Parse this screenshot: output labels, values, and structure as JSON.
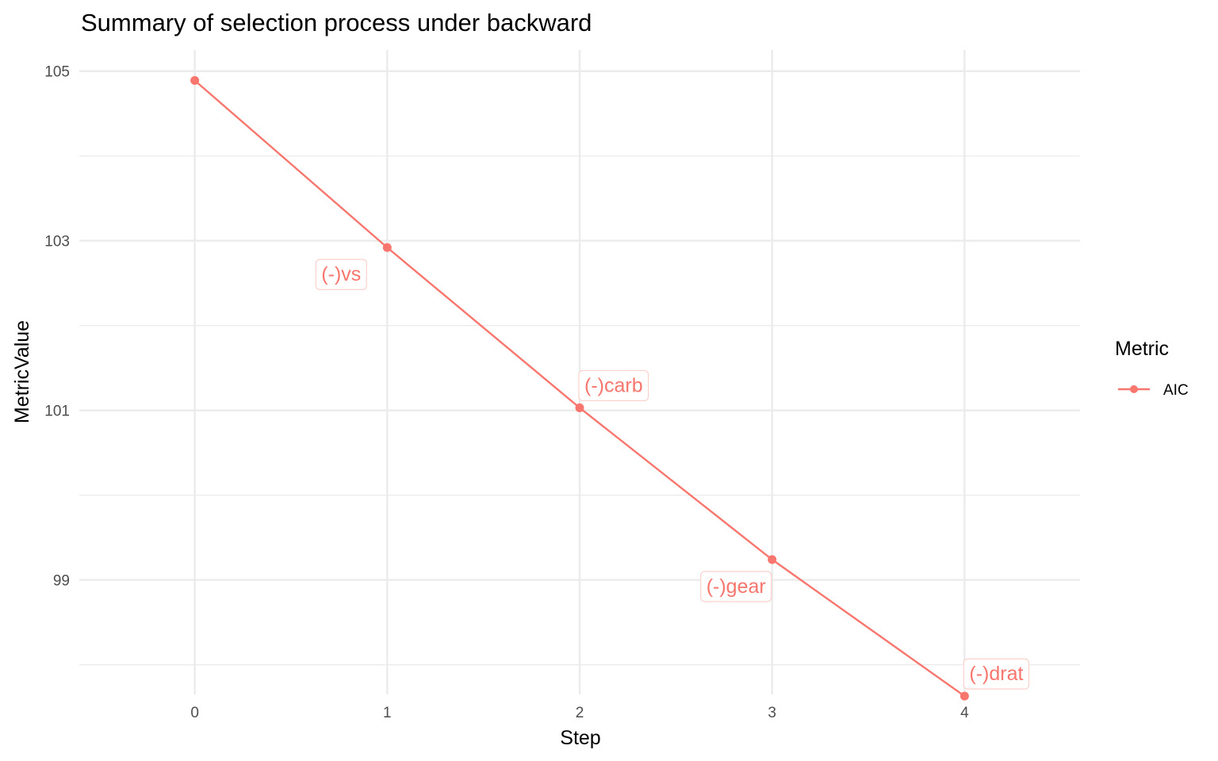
{
  "chart_data": {
    "type": "line",
    "title": "Summary of selection process under backward",
    "xlabel": "Step",
    "ylabel": "MetricValue",
    "x": [
      0,
      1,
      2,
      3,
      4
    ],
    "x_ticks": [
      "0",
      "1",
      "2",
      "3",
      "4"
    ],
    "y_ticks": [
      "99",
      "101",
      "103",
      "105"
    ],
    "xlim": [
      -0.6,
      4.6
    ],
    "ylim": [
      97.65,
      105.25
    ],
    "grid": true,
    "legend": {
      "title": "Metric",
      "position": "right"
    },
    "series": [
      {
        "name": "AIC",
        "color": "#F8766D",
        "values": [
          104.89,
          102.92,
          101.03,
          99.24,
          97.63
        ]
      }
    ],
    "annotations": [
      {
        "x": 1,
        "y": 102.92,
        "text": "(-)vs",
        "placement": "below-left"
      },
      {
        "x": 2,
        "y": 101.03,
        "text": "(-)carb",
        "placement": "above-right"
      },
      {
        "x": 3,
        "y": 99.24,
        "text": "(-)gear",
        "placement": "below-left"
      },
      {
        "x": 4,
        "y": 97.63,
        "text": "(-)drat",
        "placement": "above-right"
      }
    ]
  }
}
